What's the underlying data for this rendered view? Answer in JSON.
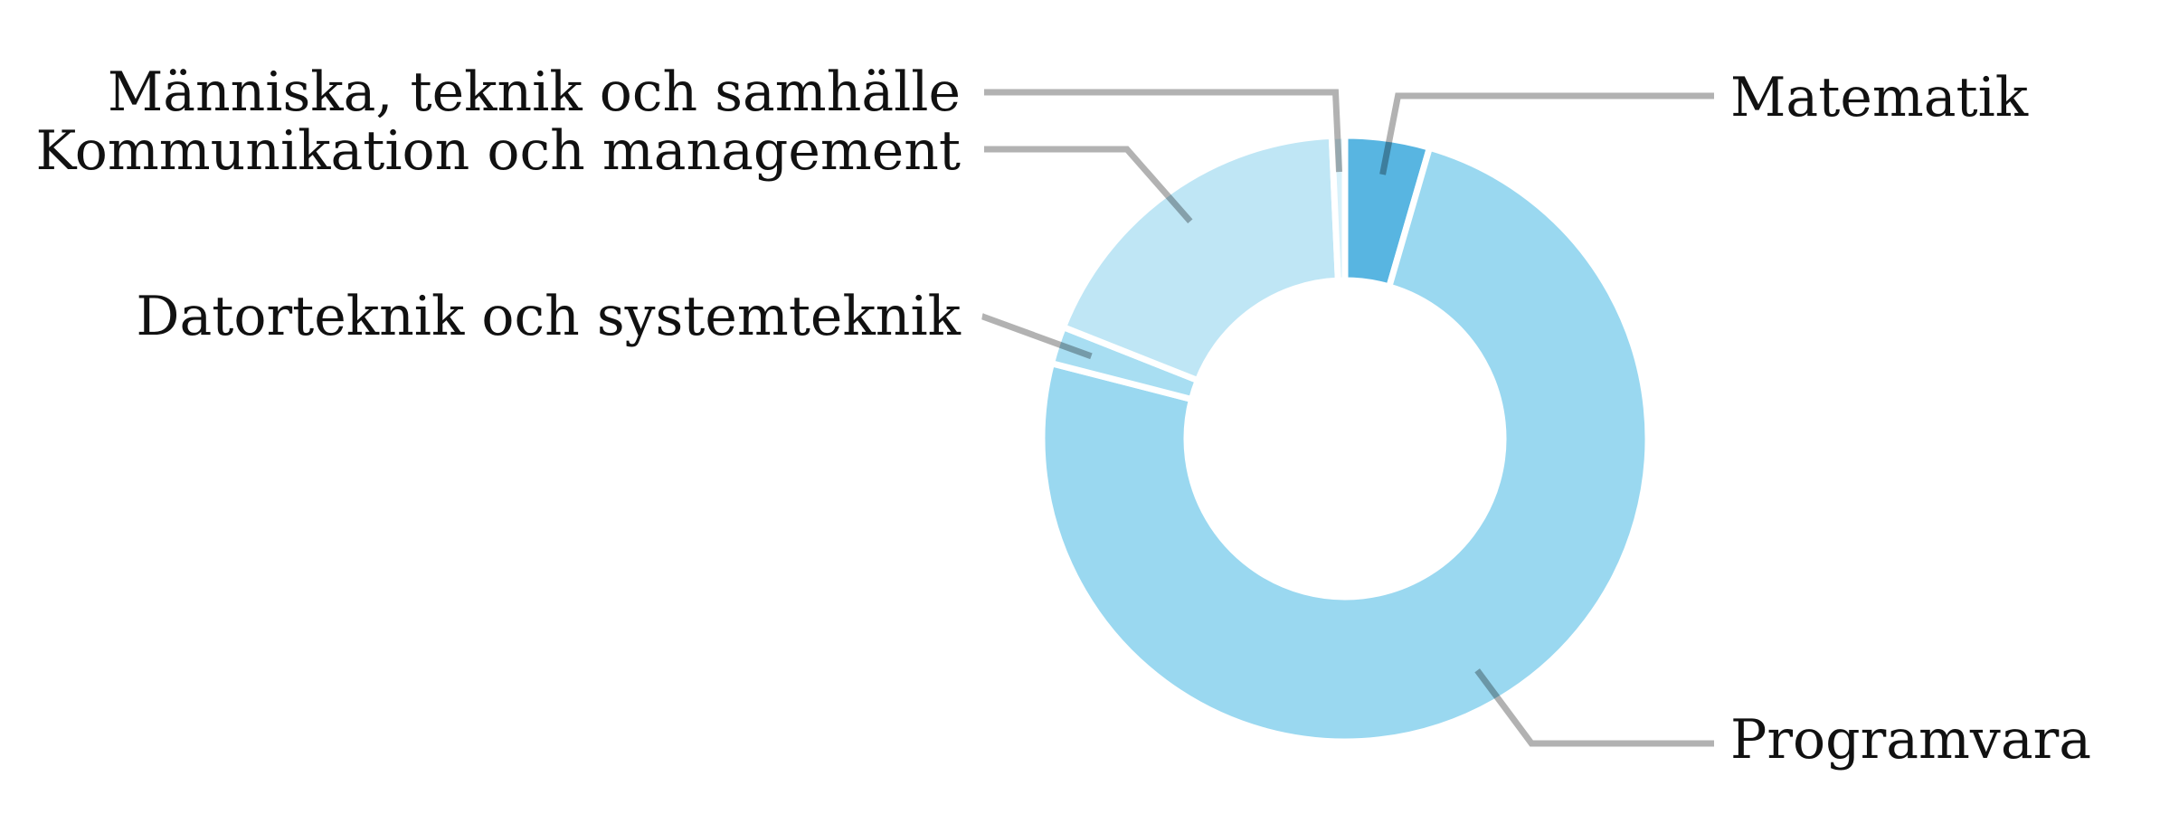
{
  "chart_data": {
    "type": "pie",
    "donut": true,
    "title": "",
    "slices": [
      {
        "label": "Matematik",
        "value": 4.5,
        "color": "#58b5e1"
      },
      {
        "label": "Programvara",
        "value": 74.5,
        "color": "#9ad8f0"
      },
      {
        "label": "Datorteknik och systemteknik",
        "value": 2.0,
        "color": "#a8def2"
      },
      {
        "label": "Kommunikation och management",
        "value": 18.3,
        "color": "#bfe6f5"
      },
      {
        "label": "Människa, teknik och samhälle",
        "value": 0.7,
        "color": "#d8f1fa"
      }
    ],
    "legend": "none",
    "label_style": "leader-lines"
  }
}
